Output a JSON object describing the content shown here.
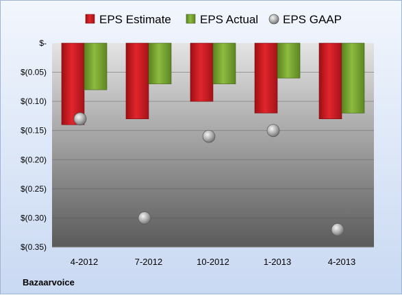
{
  "chart_data": {
    "type": "bar",
    "categories": [
      "4-2012",
      "7-2012",
      "10-2012",
      "1-2013",
      "4-2013"
    ],
    "series": [
      {
        "name": "EPS Estimate",
        "kind": "bar",
        "color": "#c0151c",
        "values": [
          -0.14,
          -0.13,
          -0.1,
          -0.12,
          -0.13
        ]
      },
      {
        "name": "EPS Actual",
        "kind": "bar",
        "color": "#6f9a2a",
        "values": [
          -0.08,
          -0.07,
          -0.07,
          -0.06,
          -0.12
        ]
      },
      {
        "name": "EPS GAAP",
        "kind": "scatter",
        "color": "#9a9a9a",
        "values": [
          -0.13,
          -0.3,
          -0.16,
          -0.15,
          -0.32
        ]
      }
    ],
    "ylim": [
      -0.35,
      0
    ],
    "yticks": [
      0,
      -0.05,
      -0.1,
      -0.15,
      -0.2,
      -0.25,
      -0.3,
      -0.35
    ],
    "ytick_labels": [
      "$-",
      "$(0.05)",
      "$(0.10)",
      "$(0.15)",
      "$(0.20)",
      "$(0.25)",
      "$(0.30)",
      "$(0.35)"
    ],
    "grid": true,
    "legend_position": "top",
    "title": "",
    "xlabel": "",
    "ylabel": ""
  },
  "footer": {
    "company": "Bazaarvoice"
  }
}
